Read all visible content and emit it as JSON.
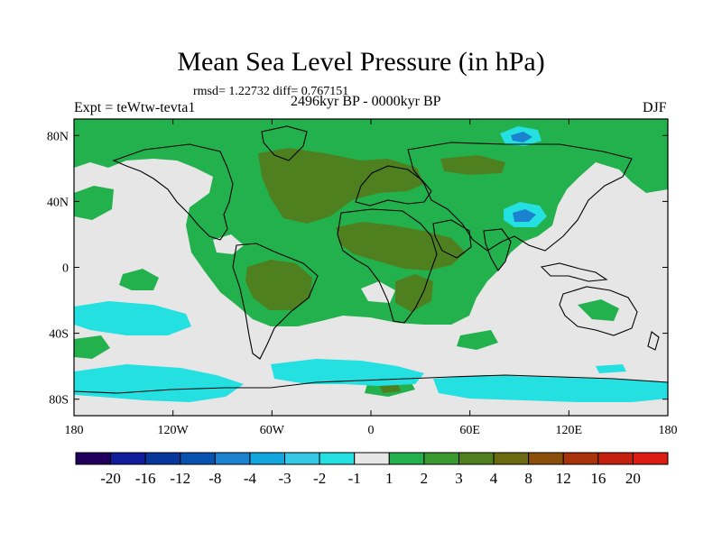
{
  "title": "Mean Sea Level Pressure (in hPa)",
  "stats": "rmsd= 1.22732 diff= 0.767151",
  "experiment": "Expt = teWtw-tevta1",
  "period": "2496kyr BP - 0000kyr BP",
  "season": "DJF",
  "map": {
    "projection": "cylindrical-equidistant",
    "lon_range": [
      -180,
      180
    ],
    "lat_range": [
      -90,
      90
    ],
    "x_ticks": [
      {
        "value": -180,
        "label": "180"
      },
      {
        "value": -120,
        "label": "120W"
      },
      {
        "value": -60,
        "label": "60W"
      },
      {
        "value": 0,
        "label": "0"
      },
      {
        "value": 60,
        "label": "60E"
      },
      {
        "value": 120,
        "label": "120E"
      },
      {
        "value": 180,
        "label": "180"
      }
    ],
    "y_ticks": [
      {
        "value": 80,
        "label": "80N"
      },
      {
        "value": 40,
        "label": "40N"
      },
      {
        "value": 0,
        "label": "0"
      },
      {
        "value": -40,
        "label": "40S"
      },
      {
        "value": -80,
        "label": "80S"
      }
    ]
  },
  "colorbar": {
    "colors": [
      "#20005a",
      "#101c9b",
      "#08379c",
      "#0a52b0",
      "#1b82cf",
      "#12a6de",
      "#36c9e6",
      "#25e0e0",
      "#e6e6e6",
      "#22b14c",
      "#3a9a30",
      "#4e8020",
      "#6b6a10",
      "#8a4f0a",
      "#a8320a",
      "#c51f10",
      "#dd1c14"
    ],
    "labels": [
      "-20",
      "-16",
      "-12",
      "-8",
      "-4",
      "-3",
      "-2",
      "-1",
      "1",
      "2",
      "3",
      "4",
      "8",
      "12",
      "16",
      "20"
    ]
  }
}
